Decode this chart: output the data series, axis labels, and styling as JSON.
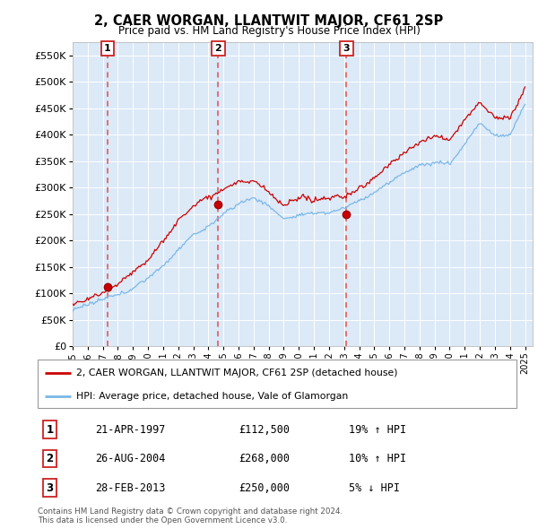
{
  "title": "2, CAER WORGAN, LLANTWIT MAJOR, CF61 2SP",
  "subtitle": "Price paid vs. HM Land Registry's House Price Index (HPI)",
  "legend_line1": "2, CAER WORGAN, LLANTWIT MAJOR, CF61 2SP (detached house)",
  "legend_line2": "HPI: Average price, detached house, Vale of Glamorgan",
  "sale_events": [
    {
      "label": "1",
      "date": "21-APR-1997",
      "price": 112500,
      "pct": "19%",
      "dir": "↑",
      "x_year": 1997.31
    },
    {
      "label": "2",
      "date": "26-AUG-2004",
      "price": 268000,
      "pct": "10%",
      "dir": "↑",
      "x_year": 2004.65
    },
    {
      "label": "3",
      "date": "28-FEB-2013",
      "price": 250000,
      "pct": "5%",
      "dir": "↓",
      "x_year": 2013.16
    }
  ],
  "hpi_color": "#7ab8e8",
  "sale_color": "#cc0000",
  "dashed_color": "#e05050",
  "plot_bg": "#dce9f7",
  "grid_color": "#c8d8ec",
  "ylim": [
    0,
    575000
  ],
  "xlim": [
    1995.0,
    2025.5
  ],
  "footer": "Contains HM Land Registry data © Crown copyright and database right 2024.\nThis data is licensed under the Open Government Licence v3.0.",
  "yticks": [
    0,
    50000,
    100000,
    150000,
    200000,
    250000,
    300000,
    350000,
    400000,
    450000,
    500000,
    550000
  ],
  "xticks": [
    1995,
    1996,
    1997,
    1998,
    1999,
    2000,
    2001,
    2002,
    2003,
    2004,
    2005,
    2006,
    2007,
    2008,
    2009,
    2010,
    2011,
    2012,
    2013,
    2014,
    2015,
    2016,
    2017,
    2018,
    2019,
    2020,
    2021,
    2022,
    2023,
    2024,
    2025
  ],
  "hpi_knots_x": [
    1995,
    1996,
    1997,
    1998,
    1999,
    2000,
    2001,
    2002,
    2003,
    2004,
    2005,
    2006,
    2007,
    2008,
    2009,
    2010,
    2011,
    2012,
    2013,
    2014,
    2015,
    2016,
    2017,
    2018,
    2019,
    2020,
    2021,
    2022,
    2023,
    2024,
    2025
  ],
  "hpi_knots_y": [
    70000,
    76000,
    84000,
    96000,
    112000,
    130000,
    155000,
    185000,
    210000,
    225000,
    252000,
    272000,
    282000,
    268000,
    240000,
    248000,
    252000,
    255000,
    262000,
    278000,
    295000,
    315000,
    335000,
    352000,
    358000,
    355000,
    390000,
    430000,
    405000,
    405000,
    465000
  ],
  "sale_knots_x": [
    1995,
    1996,
    1997,
    1998,
    1999,
    2000,
    2001,
    2002,
    2003,
    2004,
    2005,
    2006,
    2007,
    2008,
    2009,
    2010,
    2011,
    2012,
    2013,
    2014,
    2015,
    2016,
    2017,
    2018,
    2019,
    2020,
    2021,
    2022,
    2023,
    2024,
    2025
  ],
  "sale_knots_y": [
    80000,
    88000,
    100000,
    115000,
    135000,
    160000,
    195000,
    230000,
    258000,
    272000,
    290000,
    305000,
    305000,
    285000,
    258000,
    268000,
    270000,
    272000,
    275000,
    295000,
    315000,
    340000,
    362000,
    380000,
    390000,
    390000,
    430000,
    465000,
    435000,
    435000,
    490000
  ]
}
